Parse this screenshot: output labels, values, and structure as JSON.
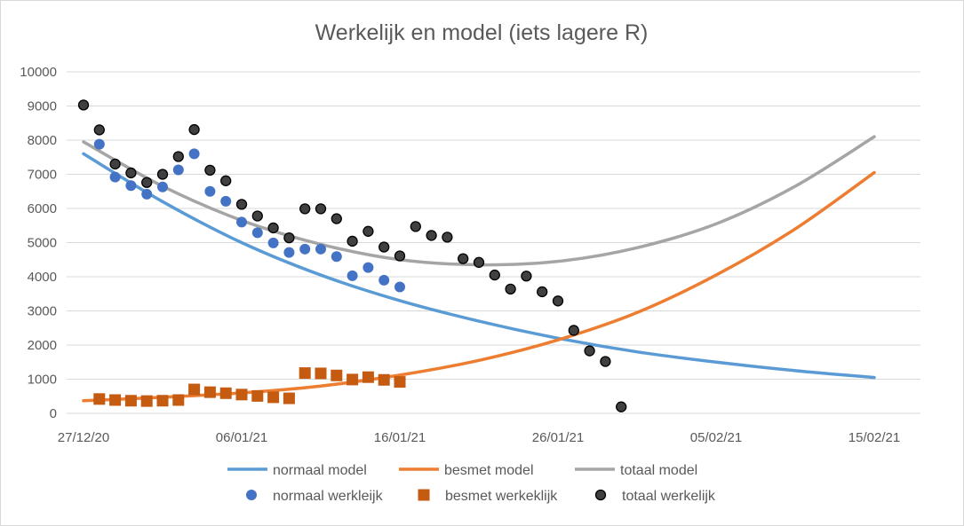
{
  "chart_data": {
    "type": "line",
    "title": "Werkelijk en model (iets lagere R)",
    "xlabel": "",
    "ylabel": "",
    "ylim": [
      0,
      10000
    ],
    "yticks": [
      0,
      1000,
      2000,
      3000,
      4000,
      5000,
      6000,
      7000,
      8000,
      9000,
      10000
    ],
    "xlim": [
      "2020-12-27",
      "2021-02-15"
    ],
    "xticks": [
      "2020-12-27",
      "2021-01-06",
      "2021-01-16",
      "2021-01-26",
      "2021-02-05",
      "2021-02-15"
    ],
    "xtick_labels": [
      "27/12/20",
      "06/01/21",
      "16/01/21",
      "26/01/21",
      "05/02/21",
      "15/02/21"
    ],
    "grid": "horizontal",
    "legend_position": "bottom",
    "series": [
      {
        "name": "normaal model",
        "kind": "line",
        "color": "#5b9bd5",
        "x": [
          "2020-12-27",
          "2021-01-01",
          "2021-01-06",
          "2021-01-11",
          "2021-01-16",
          "2021-01-21",
          "2021-01-26",
          "2021-01-31",
          "2021-02-05",
          "2021-02-10",
          "2021-02-15"
        ],
        "values": [
          7600,
          6200,
          5000,
          4050,
          3300,
          2700,
          2200,
          1800,
          1500,
          1250,
          1050
        ]
      },
      {
        "name": "besmet model",
        "kind": "line",
        "color": "#ed7d31",
        "x": [
          "2020-12-27",
          "2021-01-01",
          "2021-01-06",
          "2021-01-11",
          "2021-01-16",
          "2021-01-21",
          "2021-01-26",
          "2021-01-31",
          "2021-02-05",
          "2021-02-10",
          "2021-02-15"
        ],
        "values": [
          370,
          470,
          600,
          800,
          1120,
          1550,
          2150,
          2950,
          4050,
          5400,
          7050
        ]
      },
      {
        "name": "totaal model",
        "kind": "line",
        "color": "#a5a5a5",
        "x": [
          "2020-12-27",
          "2021-01-01",
          "2021-01-06",
          "2021-01-11",
          "2021-01-16",
          "2021-01-21",
          "2021-01-26",
          "2021-01-31",
          "2021-02-05",
          "2021-02-10",
          "2021-02-15"
        ],
        "values": [
          7950,
          6650,
          5650,
          4950,
          4500,
          4350,
          4450,
          4850,
          5550,
          6650,
          8100
        ]
      },
      {
        "name": "normaal werkleijk",
        "kind": "scatter",
        "marker": "circle",
        "color": "#4472c4",
        "x": [
          "2020-12-28",
          "2020-12-29",
          "2020-12-30",
          "2020-12-31",
          "2021-01-01",
          "2021-01-02",
          "2021-01-03",
          "2021-01-04",
          "2021-01-05",
          "2021-01-06",
          "2021-01-07",
          "2021-01-08",
          "2021-01-09",
          "2021-01-10",
          "2021-01-11",
          "2021-01-12",
          "2021-01-13",
          "2021-01-14",
          "2021-01-15",
          "2021-01-16"
        ],
        "values": [
          7880,
          6920,
          6670,
          6420,
          6630,
          7130,
          7600,
          6500,
          6210,
          5600,
          5290,
          4990,
          4710,
          4810,
          4810,
          4590,
          4030,
          4270,
          3900,
          3700
        ]
      },
      {
        "name": "besmet werkeklijk",
        "kind": "scatter",
        "marker": "square",
        "color": "#c55a11",
        "x": [
          "2020-12-28",
          "2020-12-29",
          "2020-12-30",
          "2020-12-31",
          "2021-01-01",
          "2021-01-02",
          "2021-01-03",
          "2021-01-04",
          "2021-01-05",
          "2021-01-06",
          "2021-01-07",
          "2021-01-08",
          "2021-01-09",
          "2021-01-10",
          "2021-01-11",
          "2021-01-12",
          "2021-01-13",
          "2021-01-14",
          "2021-01-15",
          "2021-01-16"
        ],
        "values": [
          420,
          390,
          370,
          360,
          370,
          390,
          700,
          620,
          590,
          550,
          510,
          470,
          440,
          1180,
          1170,
          1110,
          990,
          1060,
          980,
          920
        ]
      },
      {
        "name": "totaal werkelijk",
        "kind": "scatter",
        "marker": "circle",
        "color": "#404040",
        "x": [
          "2020-12-27",
          "2020-12-28",
          "2020-12-29",
          "2020-12-30",
          "2020-12-31",
          "2021-01-01",
          "2021-01-02",
          "2021-01-03",
          "2021-01-04",
          "2021-01-05",
          "2021-01-06",
          "2021-01-07",
          "2021-01-08",
          "2021-01-09",
          "2021-01-10",
          "2021-01-11",
          "2021-01-12",
          "2021-01-13",
          "2021-01-14",
          "2021-01-15",
          "2021-01-16",
          "2021-01-17",
          "2021-01-18",
          "2021-01-19",
          "2021-01-20",
          "2021-01-21",
          "2021-01-22",
          "2021-01-23",
          "2021-01-24",
          "2021-01-25",
          "2021-01-26",
          "2021-01-27",
          "2021-01-28",
          "2021-01-29",
          "2021-01-30"
        ],
        "values": [
          9030,
          8300,
          7300,
          7040,
          6760,
          7000,
          7520,
          8310,
          7120,
          6810,
          6120,
          5780,
          5430,
          5140,
          5990,
          5990,
          5700,
          5040,
          5330,
          4870,
          4610,
          5470,
          5210,
          5160,
          4530,
          4420,
          4050,
          3640,
          4020,
          3560,
          3290,
          2430,
          1830,
          1520,
          190
        ]
      }
    ]
  }
}
